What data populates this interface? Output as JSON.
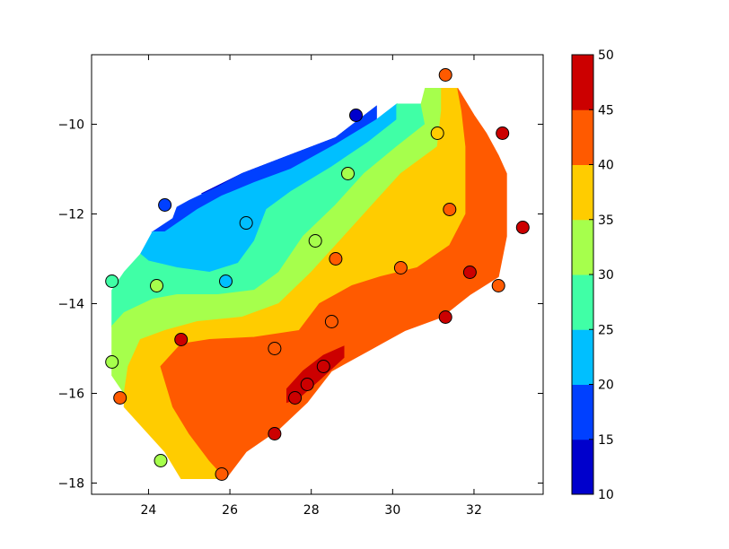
{
  "chart_data": {
    "type": "contour",
    "title": "",
    "xlabel": "",
    "ylabel": "",
    "xlim": [
      22.6,
      33.7
    ],
    "ylim": [
      -18.25,
      -8.45
    ],
    "x_ticks": [
      "24",
      "26",
      "28",
      "30",
      "32"
    ],
    "x_tick_values": [
      24,
      26,
      28,
      30,
      32
    ],
    "y_ticks": [
      "−10",
      "−12",
      "−14",
      "−16",
      "−18"
    ],
    "y_tick_values": [
      -10,
      -12,
      -14,
      -16,
      -18
    ],
    "grid": false,
    "colorbar": {
      "levels": [
        10,
        15,
        20,
        25,
        30,
        35,
        40,
        45,
        50
      ],
      "tick_labels": [
        "10",
        "15",
        "20",
        "25",
        "30",
        "35",
        "40",
        "45",
        "50"
      ],
      "colors": [
        "#0000cc",
        "#0040ff",
        "#00bfff",
        "#40ffa6",
        "#a6ff4c",
        "#ffcc00",
        "#ff5a00",
        "#cc0000"
      ]
    },
    "filled_bands": [
      {
        "range": [
          10,
          15
        ],
        "color": "#0000cc",
        "polygon": [
          [
            27.3,
            -10.75
          ],
          [
            28.6,
            -10.3
          ],
          [
            29.6,
            -9.6
          ],
          [
            29.6,
            -9.9
          ],
          [
            28.6,
            -10.45
          ],
          [
            27.5,
            -10.9
          ],
          [
            26.1,
            -11.3
          ],
          [
            25.3,
            -11.55
          ],
          [
            26.3,
            -11.1
          ]
        ]
      },
      {
        "range": [
          15,
          20
        ],
        "color": "#0040ff",
        "polygon": [
          [
            24.6,
            -12.1
          ],
          [
            24.7,
            -11.85
          ],
          [
            25.0,
            -11.7
          ],
          [
            25.7,
            -11.4
          ],
          [
            26.3,
            -11.1
          ],
          [
            27.3,
            -10.75
          ],
          [
            28.6,
            -10.3
          ],
          [
            29.6,
            -9.6
          ],
          [
            29.6,
            -9.9
          ],
          [
            28.6,
            -10.45
          ],
          [
            27.5,
            -11.0
          ],
          [
            26.6,
            -11.3
          ],
          [
            25.8,
            -11.6
          ],
          [
            25.2,
            -11.9
          ],
          [
            24.4,
            -12.4
          ],
          [
            24.1,
            -12.4
          ]
        ]
      },
      {
        "range": [
          20,
          25
        ],
        "color": "#00bfff",
        "polygon": [
          [
            24.1,
            -12.4
          ],
          [
            24.4,
            -12.4
          ],
          [
            25.2,
            -11.9
          ],
          [
            25.8,
            -11.6
          ],
          [
            26.6,
            -11.3
          ],
          [
            27.5,
            -11.0
          ],
          [
            28.6,
            -10.45
          ],
          [
            29.6,
            -9.9
          ],
          [
            30.1,
            -9.55
          ],
          [
            30.1,
            -9.9
          ],
          [
            29.4,
            -10.4
          ],
          [
            28.5,
            -10.95
          ],
          [
            27.5,
            -11.5
          ],
          [
            26.9,
            -11.9
          ],
          [
            26.6,
            -12.6
          ],
          [
            26.2,
            -13.1
          ],
          [
            25.5,
            -13.3
          ],
          [
            24.7,
            -13.2
          ],
          [
            24.0,
            -13.05
          ],
          [
            23.8,
            -12.9
          ]
        ]
      },
      {
        "range": [
          25,
          30
        ],
        "color": "#40ffa6",
        "polygon": [
          [
            23.4,
            -13.3
          ],
          [
            23.8,
            -12.9
          ],
          [
            24.0,
            -13.05
          ],
          [
            24.7,
            -13.2
          ],
          [
            25.5,
            -13.3
          ],
          [
            26.2,
            -13.1
          ],
          [
            26.6,
            -12.6
          ],
          [
            26.9,
            -11.9
          ],
          [
            27.5,
            -11.5
          ],
          [
            28.5,
            -10.95
          ],
          [
            29.4,
            -10.4
          ],
          [
            30.1,
            -9.9
          ],
          [
            30.1,
            -9.55
          ],
          [
            30.7,
            -9.55
          ],
          [
            30.8,
            -10.0
          ],
          [
            30.1,
            -10.5
          ],
          [
            29.3,
            -11.1
          ],
          [
            28.6,
            -11.8
          ],
          [
            27.8,
            -12.5
          ],
          [
            27.2,
            -13.3
          ],
          [
            26.6,
            -13.7
          ],
          [
            25.7,
            -13.8
          ],
          [
            24.7,
            -13.8
          ],
          [
            24.1,
            -13.9
          ],
          [
            23.4,
            -14.2
          ],
          [
            23.1,
            -14.5
          ],
          [
            23.1,
            -13.7
          ]
        ]
      },
      {
        "range": [
          30,
          35
        ],
        "color": "#a6ff4c",
        "polygon": [
          [
            23.1,
            -15.0
          ],
          [
            23.1,
            -14.5
          ],
          [
            23.4,
            -14.2
          ],
          [
            24.1,
            -13.9
          ],
          [
            24.7,
            -13.8
          ],
          [
            25.7,
            -13.8
          ],
          [
            26.6,
            -13.7
          ],
          [
            27.2,
            -13.3
          ],
          [
            27.8,
            -12.5
          ],
          [
            28.6,
            -11.8
          ],
          [
            29.3,
            -11.1
          ],
          [
            30.1,
            -10.5
          ],
          [
            30.8,
            -10.0
          ],
          [
            30.7,
            -9.55
          ],
          [
            30.8,
            -9.2
          ],
          [
            31.2,
            -9.2
          ],
          [
            31.2,
            -9.7
          ],
          [
            31.1,
            -10.5
          ],
          [
            30.2,
            -11.1
          ],
          [
            29.6,
            -11.7
          ],
          [
            28.8,
            -12.5
          ],
          [
            28.0,
            -13.3
          ],
          [
            27.2,
            -14.0
          ],
          [
            26.3,
            -14.3
          ],
          [
            25.2,
            -14.4
          ],
          [
            24.4,
            -14.6
          ],
          [
            23.8,
            -14.8
          ],
          [
            23.5,
            -15.4
          ],
          [
            23.4,
            -16.0
          ],
          [
            23.1,
            -15.6
          ]
        ]
      },
      {
        "range": [
          35,
          40
        ],
        "color": "#ffcc00",
        "polygon": [
          [
            23.4,
            -16.3
          ],
          [
            23.4,
            -16.0
          ],
          [
            23.5,
            -15.4
          ],
          [
            23.8,
            -14.8
          ],
          [
            24.4,
            -14.6
          ],
          [
            25.2,
            -14.4
          ],
          [
            26.3,
            -14.3
          ],
          [
            27.2,
            -14.0
          ],
          [
            28.0,
            -13.3
          ],
          [
            28.8,
            -12.5
          ],
          [
            29.6,
            -11.7
          ],
          [
            30.2,
            -11.1
          ],
          [
            31.1,
            -10.5
          ],
          [
            31.2,
            -9.7
          ],
          [
            31.2,
            -9.2
          ],
          [
            31.6,
            -9.2
          ],
          [
            31.7,
            -9.7
          ],
          [
            31.8,
            -10.5
          ],
          [
            31.8,
            -11.3
          ],
          [
            31.8,
            -12.0
          ],
          [
            31.4,
            -12.7
          ],
          [
            30.6,
            -13.2
          ],
          [
            29.7,
            -13.4
          ],
          [
            29.0,
            -13.6
          ],
          [
            28.2,
            -14.0
          ],
          [
            27.7,
            -14.6
          ],
          [
            26.6,
            -14.75
          ],
          [
            25.5,
            -14.8
          ],
          [
            24.8,
            -14.9
          ],
          [
            24.3,
            -15.4
          ],
          [
            24.6,
            -16.3
          ],
          [
            25.0,
            -16.9
          ],
          [
            25.5,
            -17.5
          ],
          [
            25.9,
            -17.9
          ],
          [
            24.8,
            -17.9
          ],
          [
            24.4,
            -17.3
          ],
          [
            23.9,
            -16.8
          ]
        ]
      },
      {
        "range": [
          40,
          45
        ],
        "color": "#ff5a00",
        "polygon": [
          [
            24.3,
            -15.4
          ],
          [
            24.8,
            -14.9
          ],
          [
            25.5,
            -14.8
          ],
          [
            26.6,
            -14.75
          ],
          [
            27.7,
            -14.6
          ],
          [
            28.2,
            -14.0
          ],
          [
            29.0,
            -13.6
          ],
          [
            29.7,
            -13.4
          ],
          [
            30.6,
            -13.2
          ],
          [
            31.4,
            -12.7
          ],
          [
            31.8,
            -12.0
          ],
          [
            31.8,
            -11.3
          ],
          [
            31.8,
            -10.5
          ],
          [
            31.7,
            -9.7
          ],
          [
            31.6,
            -9.2
          ],
          [
            31.8,
            -9.5
          ],
          [
            32.0,
            -9.8
          ],
          [
            32.3,
            -10.2
          ],
          [
            32.6,
            -10.7
          ],
          [
            32.8,
            -11.1
          ],
          [
            32.8,
            -12.5
          ],
          [
            32.6,
            -13.4
          ],
          [
            31.9,
            -13.8
          ],
          [
            31.2,
            -14.3
          ],
          [
            30.3,
            -14.6
          ],
          [
            29.5,
            -15.0
          ],
          [
            28.5,
            -15.5
          ],
          [
            27.9,
            -16.2
          ],
          [
            27.2,
            -16.8
          ],
          [
            26.4,
            -17.3
          ],
          [
            25.9,
            -17.9
          ],
          [
            25.5,
            -17.5
          ],
          [
            25.0,
            -16.9
          ],
          [
            24.6,
            -16.3
          ]
        ]
      },
      {
        "range": [
          45,
          50
        ],
        "color": "#cc0000",
        "polygon": [
          [
            27.4,
            -15.9
          ],
          [
            27.8,
            -15.5
          ],
          [
            28.3,
            -15.15
          ],
          [
            28.8,
            -14.95
          ],
          [
            28.8,
            -15.2
          ],
          [
            28.2,
            -15.7
          ],
          [
            27.7,
            -16.1
          ],
          [
            27.4,
            -16.2
          ]
        ]
      }
    ],
    "points": [
      {
        "x": 29.1,
        "y": -9.8,
        "value": 10
      },
      {
        "x": 24.4,
        "y": -11.8,
        "value": 17
      },
      {
        "x": 26.4,
        "y": -12.2,
        "value": 22
      },
      {
        "x": 25.9,
        "y": -13.5,
        "value": 23
      },
      {
        "x": 23.1,
        "y": -13.5,
        "value": 27
      },
      {
        "x": 23.1,
        "y": -15.3,
        "value": 31
      },
      {
        "x": 24.2,
        "y": -13.6,
        "value": 33
      },
      {
        "x": 24.3,
        "y": -17.5,
        "value": 33
      },
      {
        "x": 28.1,
        "y": -12.6,
        "value": 33
      },
      {
        "x": 28.9,
        "y": -11.1,
        "value": 34
      },
      {
        "x": 31.1,
        "y": -10.2,
        "value": 36
      },
      {
        "x": 23.3,
        "y": -16.1,
        "value": 41
      },
      {
        "x": 28.6,
        "y": -13.0,
        "value": 41
      },
      {
        "x": 30.2,
        "y": -13.2,
        "value": 41
      },
      {
        "x": 31.3,
        "y": -8.9,
        "value": 41
      },
      {
        "x": 31.4,
        "y": -11.9,
        "value": 41
      },
      {
        "x": 32.6,
        "y": -13.6,
        "value": 42
      },
      {
        "x": 25.8,
        "y": -17.8,
        "value": 42
      },
      {
        "x": 27.1,
        "y": -15.0,
        "value": 44
      },
      {
        "x": 28.5,
        "y": -14.4,
        "value": 44
      },
      {
        "x": 24.8,
        "y": -14.8,
        "value": 46
      },
      {
        "x": 27.1,
        "y": -16.9,
        "value": 46
      },
      {
        "x": 33.2,
        "y": -12.3,
        "value": 46
      },
      {
        "x": 31.3,
        "y": -14.3,
        "value": 47
      },
      {
        "x": 31.9,
        "y": -13.3,
        "value": 47
      },
      {
        "x": 32.7,
        "y": -10.2,
        "value": 48
      },
      {
        "x": 27.9,
        "y": -15.8,
        "value": 48
      },
      {
        "x": 28.3,
        "y": -15.4,
        "value": 48
      },
      {
        "x": 27.6,
        "y": -16.1,
        "value": 49
      }
    ]
  }
}
